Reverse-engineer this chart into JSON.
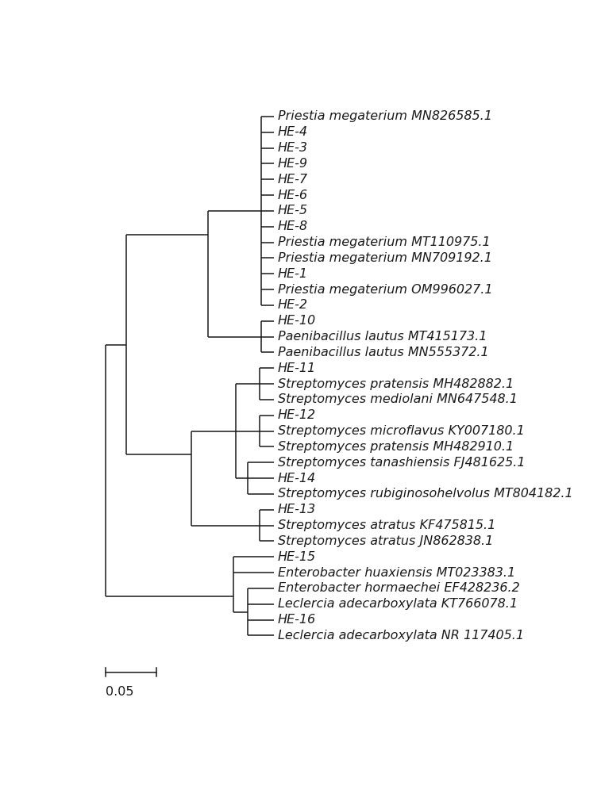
{
  "scale_bar_label": "0.05",
  "font_size": 11.5,
  "font_family": "Times New Roman",
  "line_color": "#1a1a1a",
  "bg_color": "#ffffff",
  "taxa": [
    "Priestia megaterium MN826585.1",
    "HE-4",
    "HE-3",
    "HE-9",
    "HE-7",
    "HE-6",
    "HE-5",
    "HE-8",
    "Priestia megaterium MT110975.1",
    "Priestia megaterium MN709192.1",
    "HE-1",
    "Priestia megaterium OM996027.1",
    "HE-2",
    "HE-10",
    "Paenibacillus lautus MT415173.1",
    "Paenibacillus lautus MN555372.1",
    "HE-11",
    "Streptomyces pratensis MH482882.1",
    "Streptomyces mediolani MN647548.1",
    "HE-12",
    "Streptomyces microflavus KY007180.1",
    "Streptomyces pratensis MH482910.1",
    "Streptomyces tanashiensis FJ481625.1",
    "HE-14",
    "Streptomyces rubiginosohelvolus MT804182.1",
    "HE-13",
    "Streptomyces atratus KF475815.1",
    "Streptomyces atratus JN862838.1",
    "HE-15",
    "Enterobacter huaxiensis MT023383.1",
    "Enterobacter hormaechei EF428236.2",
    "Leclercia adecarboxylata KT766078.1",
    "HE-16",
    "Leclercia adecarboxylata NR 117405.1"
  ]
}
